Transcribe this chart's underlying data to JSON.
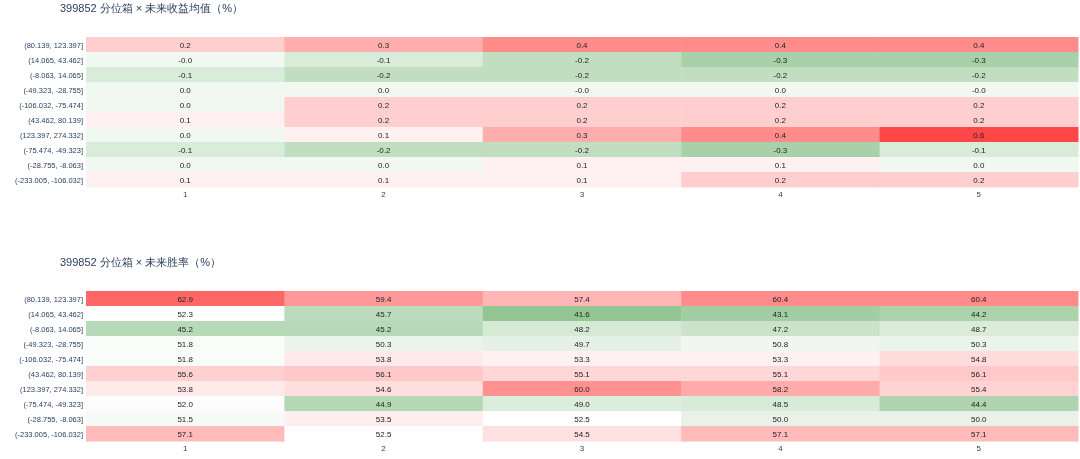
{
  "chart_data": [
    {
      "type": "heatmap",
      "title": "399852 分位箱 × 未来收益均值（%）",
      "categories": [
        "1",
        "2",
        "3",
        "4",
        "5"
      ],
      "y_categories": [
        "(80.139, 123.397]",
        "(14.065, 43.462]",
        "(-8.063, 14.065]",
        "(-49.323, -28.755]",
        "(-106.032, -75.474]",
        "(43.462, 80.139]",
        "(123.397, 274.332]",
        "(-75.474, -49.323]",
        "(-28.755, -8.063]",
        "(-233.005, -106.032]"
      ],
      "cells": [
        [
          0.2,
          0.3,
          0.4,
          0.4,
          0.4
        ],
        [
          0.0,
          -0.1,
          -0.2,
          -0.3,
          -0.3
        ],
        [
          -0.1,
          -0.2,
          -0.2,
          -0.2,
          -0.2
        ],
        [
          0.0,
          0.0,
          0.0,
          0.0,
          0.0
        ],
        [
          0.0,
          0.2,
          0.2,
          0.2,
          0.2
        ],
        [
          0.1,
          0.2,
          0.2,
          0.2,
          0.2
        ],
        [
          0.0,
          0.1,
          0.3,
          0.4,
          0.6
        ],
        [
          -0.1,
          -0.2,
          -0.2,
          -0.3,
          -0.1
        ],
        [
          0.0,
          0.0,
          0.1,
          0.1,
          0.0
        ],
        [
          0.1,
          0.1,
          0.1,
          0.2,
          0.2
        ]
      ],
      "cell_labels": [
        [
          "0.2",
          "0.3",
          "0.4",
          "0.4",
          "0.4"
        ],
        [
          "-0.0",
          "-0.1",
          "-0.2",
          "-0.3",
          "-0.3"
        ],
        [
          "-0.1",
          "-0.2",
          "-0.2",
          "-0.2",
          "-0.2"
        ],
        [
          "0.0",
          "0.0",
          "-0.0",
          "0.0",
          "-0.0"
        ],
        [
          "0.0",
          "0.2",
          "0.2",
          "0.2",
          "0.2"
        ],
        [
          "0.1",
          "0.2",
          "0.2",
          "0.2",
          "0.2"
        ],
        [
          "0.0",
          "0.1",
          "0.3",
          "0.4",
          "0.6"
        ],
        [
          "-0.1",
          "-0.2",
          "-0.2",
          "-0.3",
          "-0.1"
        ],
        [
          "0.0",
          "0.0",
          "0.1",
          "0.1",
          "0.0"
        ],
        [
          "0.1",
          "0.1",
          "0.1",
          "0.2",
          "0.2"
        ]
      ]
    },
    {
      "type": "heatmap",
      "title": "399852 分位箱 × 未来胜率（%）",
      "categories": [
        "1",
        "2",
        "3",
        "4",
        "5"
      ],
      "y_categories": [
        "(80.139, 123.397]",
        "(14.065, 43.462]",
        "(-8.063, 14.065]",
        "(-49.323, -28.755]",
        "(-106.032, -75.474]",
        "(43.462, 80.139]",
        "(123.397, 274.332]",
        "(-75.474, -49.323]",
        "(-28.755, -8.063]",
        "(-233.005, -106.032]"
      ],
      "cells": [
        [
          62.9,
          59.4,
          57.4,
          60.4,
          60.4
        ],
        [
          52.3,
          45.7,
          41.6,
          43.1,
          44.2
        ],
        [
          45.2,
          45.2,
          48.2,
          47.2,
          48.7
        ],
        [
          51.8,
          50.3,
          49.7,
          50.8,
          50.3
        ],
        [
          51.8,
          53.8,
          53.3,
          53.3,
          54.8
        ],
        [
          55.6,
          56.1,
          55.1,
          55.1,
          56.1
        ],
        [
          53.8,
          54.6,
          60.0,
          58.2,
          55.4
        ],
        [
          52.0,
          44.9,
          49.0,
          48.5,
          44.4
        ],
        [
          51.5,
          53.5,
          52.5,
          50.0,
          50.0
        ],
        [
          57.1,
          52.5,
          54.5,
          57.1,
          57.1
        ]
      ],
      "cell_labels": [
        [
          "62.9",
          "59.4",
          "57.4",
          "60.4",
          "60.4"
        ],
        [
          "52.3",
          "45.7",
          "41.6",
          "43.1",
          "44.2"
        ],
        [
          "45.2",
          "45.2",
          "48.2",
          "47.2",
          "48.7"
        ],
        [
          "51.8",
          "50.3",
          "49.7",
          "50.8",
          "50.3"
        ],
        [
          "51.8",
          "53.8",
          "53.3",
          "53.3",
          "54.8"
        ],
        [
          "55.6",
          "56.1",
          "55.1",
          "55.1",
          "56.1"
        ],
        [
          "53.8",
          "54.6",
          "60.0",
          "58.2",
          "55.4"
        ],
        [
          "52.0",
          "44.9",
          "49.0",
          "48.5",
          "44.4"
        ],
        [
          "51.5",
          "53.5",
          "52.5",
          "50.0",
          "50.0"
        ],
        [
          "57.1",
          "52.5",
          "54.5",
          "57.1",
          "57.1"
        ]
      ]
    }
  ]
}
